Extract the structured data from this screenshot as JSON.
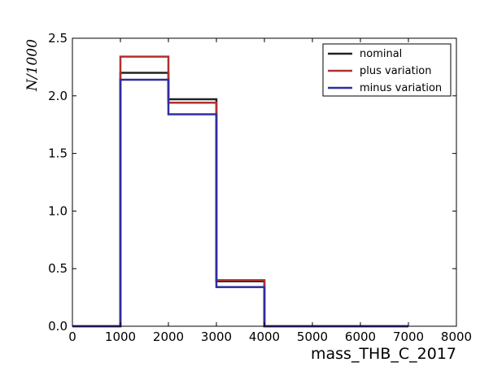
{
  "chart_data": {
    "type": "histogram-step",
    "xlabel": "mass_THB_C_2017",
    "ylabel": "N/1000",
    "xlim": [
      0,
      8000
    ],
    "ylim": [
      0,
      2.5
    ],
    "x_ticks": [
      0,
      1000,
      2000,
      3000,
      4000,
      5000,
      6000,
      7000,
      8000
    ],
    "y_ticks": [
      0.0,
      0.5,
      1.0,
      1.5,
      2.0,
      2.5
    ],
    "x_tick_labels": [
      "0",
      "1000",
      "2000",
      "3000",
      "4000",
      "5000",
      "6000",
      "7000",
      "8000"
    ],
    "y_tick_labels": [
      "0.0",
      "0.5",
      "1.0",
      "1.5",
      "2.0",
      "2.5"
    ],
    "bin_edges": [
      0,
      1000,
      2000,
      3000,
      4000,
      5000,
      6000,
      7000
    ],
    "grid": false,
    "legend_position": "top-right",
    "series": [
      {
        "name": "nominal",
        "color": "#222222",
        "values": [
          0.0,
          2.2,
          1.97,
          0.39,
          0.0,
          0.0,
          0.0
        ]
      },
      {
        "name": "plus variation",
        "color": "#b03030",
        "values": [
          0.0,
          2.34,
          1.94,
          0.4,
          0.0,
          0.0,
          0.0
        ]
      },
      {
        "name": "minus variation",
        "color": "#2e2e9e",
        "values": [
          0.0,
          2.14,
          1.84,
          0.34,
          0.0,
          0.0,
          0.0
        ]
      }
    ]
  }
}
